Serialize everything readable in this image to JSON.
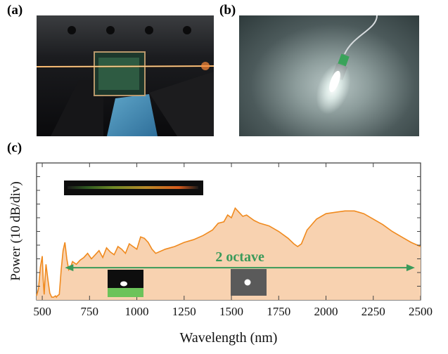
{
  "panels": {
    "a": "(a)",
    "b": "(b)",
    "c": "(c)"
  },
  "chart_data": {
    "type": "area",
    "title": "",
    "xlabel": "Wavelength (nm)",
    "ylabel": "Power (10 dB/div)",
    "xlim": [
      470,
      2500
    ],
    "ylim": [
      0,
      10
    ],
    "xticks": [
      500,
      750,
      1000,
      1250,
      1500,
      1750,
      2000,
      2250,
      2500
    ],
    "xtick_labels": [
      "500",
      "750",
      "1000",
      "1250",
      "1500",
      "1750",
      "2000",
      "2250",
      "2500"
    ],
    "y_tick_labels_shown": false,
    "series": [
      {
        "fill_color": "#f8d2b0",
        "line_color": "#f08a1e",
        "x": [
          470,
          480,
          490,
          500,
          505,
          510,
          515,
          520,
          530,
          540,
          550,
          560,
          570,
          575,
          580,
          590,
          600,
          610,
          620,
          630,
          640,
          650,
          660,
          680,
          700,
          720,
          740,
          760,
          780,
          800,
          820,
          840,
          860,
          880,
          900,
          920,
          940,
          960,
          980,
          1000,
          1020,
          1040,
          1060,
          1080,
          1100,
          1150,
          1200,
          1250,
          1300,
          1350,
          1400,
          1430,
          1460,
          1480,
          1500,
          1520,
          1540,
          1560,
          1580,
          1600,
          1620,
          1650,
          1700,
          1750,
          1800,
          1830,
          1850,
          1870,
          1900,
          1950,
          2000,
          2050,
          2100,
          2150,
          2200,
          2250,
          2300,
          2350,
          2400,
          2450,
          2500
        ],
        "y": [
          0.3,
          0.8,
          2.4,
          3.2,
          1.5,
          0.4,
          1.6,
          2.6,
          1.5,
          0.5,
          0.2,
          0.2,
          0.3,
          0.2,
          0.3,
          0.4,
          2.2,
          3.6,
          4.2,
          3.0,
          2.2,
          2.4,
          2.8,
          2.6,
          2.9,
          3.1,
          3.4,
          3.0,
          3.3,
          3.6,
          3.1,
          3.8,
          3.5,
          3.3,
          3.9,
          3.7,
          3.4,
          4.1,
          3.9,
          3.7,
          4.6,
          4.5,
          4.2,
          3.7,
          3.4,
          3.7,
          3.9,
          4.2,
          4.4,
          4.7,
          5.1,
          5.6,
          5.7,
          6.2,
          6.0,
          6.7,
          6.4,
          6.1,
          6.2,
          6.0,
          5.8,
          5.6,
          5.4,
          5.0,
          4.5,
          4.1,
          3.9,
          4.1,
          5.1,
          5.9,
          6.3,
          6.4,
          6.5,
          6.5,
          6.3,
          5.9,
          5.5,
          5.0,
          4.6,
          4.2,
          3.9
        ]
      }
    ],
    "annotations": [
      {
        "text": "2 octave",
        "from_x": 620,
        "to_x": 2470,
        "y": 2.35,
        "color": "#3a9a5a"
      }
    ]
  }
}
